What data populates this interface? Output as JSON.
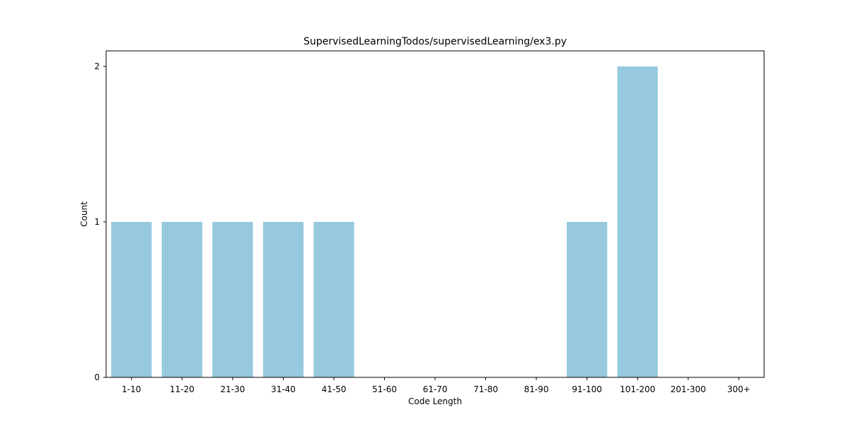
{
  "chart_data": {
    "type": "bar",
    "title": "SupervisedLearningTodos/supervisedLearning/ex3.py",
    "xlabel": "Code Length",
    "ylabel": "Count",
    "categories": [
      "1-10",
      "11-20",
      "21-30",
      "31-40",
      "41-50",
      "51-60",
      "61-70",
      "71-80",
      "81-90",
      "91-100",
      "101-200",
      "201-300",
      "300+"
    ],
    "values": [
      1,
      1,
      1,
      1,
      1,
      0,
      0,
      0,
      0,
      1,
      2,
      0,
      0
    ],
    "ylim": [
      0,
      2.1
    ],
    "yticks": [
      0,
      1,
      2
    ],
    "grid": false,
    "colors": {
      "bar": "#96c9de",
      "axis": "#000000",
      "background": "#ffffff"
    }
  }
}
